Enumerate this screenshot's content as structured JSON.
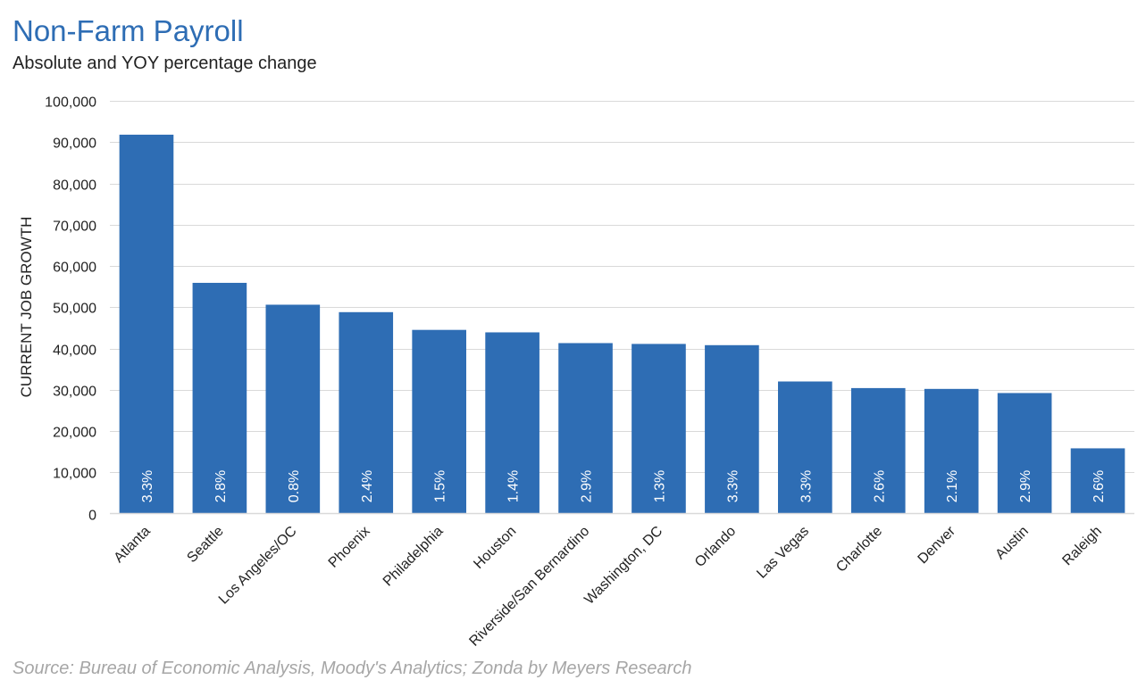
{
  "header": {
    "title": "Non-Farm Payroll",
    "subtitle": "Absolute and YOY percentage change"
  },
  "footer": {
    "source": "Source: Bureau of Economic Analysis, Moody's Analytics; Zonda by Meyers Research"
  },
  "colors": {
    "bar": "#2E6DB4",
    "title": "#2E6DB4",
    "grid": "#d9d9d9",
    "source": "#a6a6a6"
  },
  "chart_data": {
    "type": "bar",
    "title": "Non-Farm Payroll",
    "subtitle": "Absolute and YOY percentage change",
    "xlabel": "",
    "ylabel": "CURRENT JOB GROWTH",
    "ylim": [
      0,
      100000
    ],
    "yticks": [
      0,
      10000,
      20000,
      30000,
      40000,
      50000,
      60000,
      70000,
      80000,
      90000,
      100000
    ],
    "ytick_labels": [
      "0",
      "10,000",
      "20,000",
      "30,000",
      "40,000",
      "50,000",
      "60,000",
      "70,000",
      "80,000",
      "90,000",
      "100,000"
    ],
    "grid": true,
    "legend": "none",
    "categories": [
      "Atlanta",
      "Seattle",
      "Los Angeles/OC",
      "Phoenix",
      "Philadelphia",
      "Houston",
      "Riverside/San Bernardino",
      "Washington, DC",
      "Orlando",
      "Las Vegas",
      "Charlotte",
      "Denver",
      "Austin",
      "Raleigh"
    ],
    "values": [
      91800,
      55900,
      50600,
      48800,
      44500,
      43900,
      41300,
      41100,
      40800,
      32000,
      30400,
      30200,
      29200,
      15800
    ],
    "data_labels": [
      "3.3%",
      "2.8%",
      "0.8%",
      "2.4%",
      "1.5%",
      "1.4%",
      "2.9%",
      "1.3%",
      "3.3%",
      "3.3%",
      "2.6%",
      "2.1%",
      "2.9%",
      "2.6%"
    ]
  }
}
